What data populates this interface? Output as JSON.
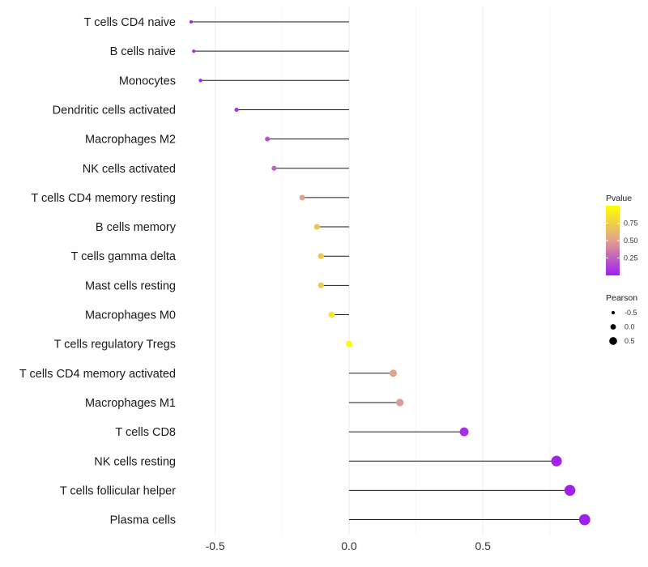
{
  "chart_data": {
    "type": "lollipop",
    "title": "",
    "xlabel": "",
    "ylabel": "",
    "xlim": [
      -0.62,
      0.92
    ],
    "x_ticks": [
      -0.5,
      0.0,
      0.5
    ],
    "x_tick_labels": [
      "-0.5",
      "0.0",
      "0.5"
    ],
    "grid": true,
    "categories": [
      "T cells CD4 naive",
      "B cells naive",
      "Monocytes",
      "Dendritic cells activated",
      "Macrophages M2",
      "NK cells activated",
      "T cells CD4 memory resting",
      "B cells memory",
      "T cells gamma delta",
      "Mast cells resting",
      "Macrophages M0",
      "T cells regulatory  Tregs",
      "T cells CD4 memory activated",
      "Macrophages M1",
      "T cells CD8",
      "NK cells resting",
      "T cells follicular helper",
      "Plasma cells"
    ],
    "pearson": [
      -0.59,
      -0.58,
      -0.555,
      -0.42,
      -0.305,
      -0.28,
      -0.175,
      -0.12,
      -0.105,
      -0.105,
      -0.065,
      0.0,
      0.165,
      0.19,
      0.43,
      0.775,
      0.825,
      0.88
    ],
    "pvalue": [
      0.02,
      0.02,
      0.03,
      0.08,
      0.2,
      0.25,
      0.5,
      0.7,
      0.72,
      0.72,
      0.85,
      0.99,
      0.52,
      0.48,
      0.05,
      0.01,
      0.005,
      0.001
    ],
    "legend_color": {
      "title": "Pvalue",
      "ticks": [
        0.25,
        0.5,
        0.75
      ],
      "tick_labels": [
        "0.25",
        "0.50",
        "0.75"
      ],
      "range": [
        0.0,
        1.0
      ],
      "low_color": "#a020f0",
      "mid_color": "#e0a090",
      "high_color": "#ffff00"
    },
    "legend_size": {
      "title": "Pearson",
      "values": [
        -0.5,
        0.0,
        0.5
      ],
      "labels": [
        "-0.5",
        "0.0",
        "0.5"
      ]
    },
    "legend_position": "right"
  }
}
